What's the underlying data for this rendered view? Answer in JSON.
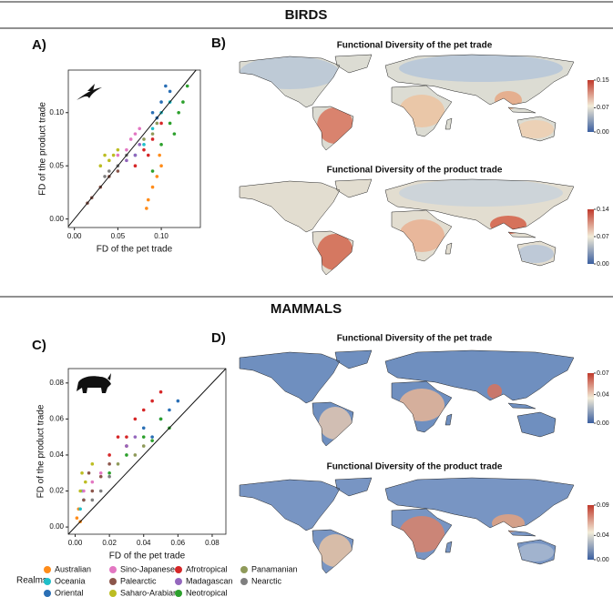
{
  "sections": [
    "BIRDS",
    "MAMMALS"
  ],
  "panels": [
    "A)",
    "B)",
    "C)",
    "D)"
  ],
  "chart_data": [
    {
      "type": "scatter",
      "xlabel": "FD of the pet trade",
      "ylabel": "FD of the product trade",
      "xlim": [
        -0.007,
        0.145
      ],
      "ylim": [
        -0.008,
        0.14
      ],
      "xticks": [
        {
          "value": 0,
          "label": "0.00"
        },
        0.05,
        {
          "value": 0.1,
          "label": "0.10"
        }
      ],
      "yticks": [
        {
          "value": 0,
          "label": "0.00"
        },
        0.05,
        {
          "value": 0.1,
          "label": "0.10"
        }
      ],
      "series": [
        {
          "color": "#ff8c1a",
          "x": [
            0.085,
            0.09,
            0.095,
            0.1,
            0.083,
            0.098
          ],
          "values": [
            0.018,
            0.03,
            0.04,
            0.05,
            0.01,
            0.06
          ]
        },
        {
          "color": "#1fbfc9",
          "x": [
            0.07,
            0.08,
            0.09,
            0.1,
            0.11
          ],
          "values": [
            0.06,
            0.07,
            0.085,
            0.1,
            0.11
          ]
        },
        {
          "color": "#2a6fb5",
          "x": [
            0.09,
            0.1,
            0.11,
            0.105,
            0.095
          ],
          "values": [
            0.1,
            0.11,
            0.12,
            0.125,
            0.095
          ]
        },
        {
          "color": "#e377c2",
          "x": [
            0.05,
            0.06,
            0.065,
            0.07,
            0.075
          ],
          "values": [
            0.06,
            0.065,
            0.075,
            0.08,
            0.085
          ]
        },
        {
          "color": "#8c564b",
          "x": [
            0.02,
            0.03,
            0.04,
            0.05,
            0.015
          ],
          "values": [
            0.02,
            0.03,
            0.04,
            0.045,
            0.015
          ]
        },
        {
          "color": "#bcbd22",
          "x": [
            0.03,
            0.04,
            0.05,
            0.035,
            0.045
          ],
          "values": [
            0.05,
            0.055,
            0.065,
            0.06,
            0.06
          ]
        },
        {
          "color": "#d62728",
          "x": [
            0.07,
            0.08,
            0.09,
            0.1,
            0.085
          ],
          "values": [
            0.05,
            0.065,
            0.075,
            0.09,
            0.06
          ]
        },
        {
          "color": "#9467bd",
          "x": [
            0.06,
            0.07,
            0.075
          ],
          "values": [
            0.055,
            0.06,
            0.07
          ]
        },
        {
          "color": "#2ca02c",
          "x": [
            0.09,
            0.1,
            0.11,
            0.12,
            0.125,
            0.13,
            0.115
          ],
          "values": [
            0.045,
            0.07,
            0.09,
            0.1,
            0.11,
            0.125,
            0.08
          ]
        },
        {
          "color": "#8f9a5a",
          "x": [
            0.08,
            0.09,
            0.095
          ],
          "values": [
            0.075,
            0.08,
            0.09
          ]
        },
        {
          "color": "#7f7f7f",
          "x": [
            0.04,
            0.05,
            0.06,
            0.035
          ],
          "values": [
            0.045,
            0.05,
            0.06,
            0.04
          ]
        }
      ]
    },
    {
      "type": "map",
      "title": "Functional Diversity of the pet trade",
      "colors": [
        "#3b5fa0",
        "#f2ecd8",
        "#c0392b"
      ],
      "ylim": [
        0,
        0.15
      ],
      "yticks": [
        {
          "value": 0,
          "label": "0.00"
        },
        0.07,
        0.15
      ]
    },
    {
      "type": "map",
      "title": "Functional Diversity of the product trade",
      "colors": [
        "#3b5fa0",
        "#f2ecd8",
        "#c0392b"
      ],
      "ylim": [
        0,
        0.14
      ],
      "yticks": [
        {
          "value": 0,
          "label": "0.00"
        },
        0.07,
        0.14
      ]
    },
    {
      "type": "scatter",
      "xlabel": "FD of the pet trade",
      "ylabel": "FD of the product trade",
      "legend_title": "Realms",
      "xlim": [
        -0.004,
        0.088
      ],
      "ylim": [
        -0.004,
        0.088
      ],
      "xticks": [
        {
          "value": 0,
          "label": "0.00"
        },
        0.02,
        0.04,
        0.06,
        0.08
      ],
      "yticks": [
        {
          "value": 0,
          "label": "0.00"
        },
        0.02,
        0.04,
        0.06,
        0.08
      ],
      "series": [
        {
          "name": "Australian",
          "color": "#ff8c1a",
          "x": [
            0.001,
            0.002,
            0.003
          ],
          "values": [
            0.005,
            0.01,
            0.003
          ]
        },
        {
          "name": "Oceania",
          "color": "#1fbfc9",
          "x": [
            0.003,
            0.005,
            0.004
          ],
          "values": [
            0.01,
            0.015,
            0.02
          ]
        },
        {
          "name": "Oriental",
          "color": "#2a6fb5",
          "x": [
            0.04,
            0.05,
            0.055,
            0.06,
            0.045
          ],
          "values": [
            0.055,
            0.06,
            0.065,
            0.07,
            0.05
          ]
        },
        {
          "name": "Sino-Japanese",
          "color": "#e377c2",
          "x": [
            0.005,
            0.01,
            0.015
          ],
          "values": [
            0.02,
            0.025,
            0.03
          ]
        },
        {
          "name": "Palearctic",
          "color": "#8c564b",
          "x": [
            0.005,
            0.01,
            0.015,
            0.02,
            0.008
          ],
          "values": [
            0.015,
            0.02,
            0.028,
            0.035,
            0.03
          ]
        },
        {
          "name": "Saharo-Arabian",
          "color": "#bcbd22",
          "x": [
            0.003,
            0.006,
            0.01,
            0.004
          ],
          "values": [
            0.02,
            0.025,
            0.035,
            0.03
          ]
        },
        {
          "name": "Afrotropical",
          "color": "#d62728",
          "x": [
            0.02,
            0.03,
            0.035,
            0.04,
            0.045,
            0.05,
            0.03,
            0.025
          ],
          "values": [
            0.04,
            0.05,
            0.06,
            0.065,
            0.07,
            0.075,
            0.045,
            0.05
          ]
        },
        {
          "name": "Madagascan",
          "color": "#9467bd",
          "x": [
            0.03,
            0.035
          ],
          "values": [
            0.045,
            0.05
          ]
        },
        {
          "name": "Neotropical",
          "color": "#2ca02c",
          "x": [
            0.02,
            0.03,
            0.04,
            0.05,
            0.055,
            0.045
          ],
          "values": [
            0.03,
            0.04,
            0.05,
            0.06,
            0.055,
            0.048
          ]
        },
        {
          "name": "Panamanian",
          "color": "#8f9a5a",
          "x": [
            0.025,
            0.035,
            0.04
          ],
          "values": [
            0.035,
            0.04,
            0.045
          ]
        },
        {
          "name": "Nearctic",
          "color": "#7f7f7f",
          "x": [
            0.01,
            0.02,
            0.015
          ],
          "values": [
            0.015,
            0.028,
            0.02
          ]
        }
      ]
    },
    {
      "type": "map",
      "title": "Functional Diversity of the pet trade",
      "colors": [
        "#3b5fa0",
        "#f2ecd8",
        "#c0392b"
      ],
      "ylim": [
        0,
        0.07
      ],
      "yticks": [
        {
          "value": 0,
          "label": "0.00"
        },
        0.04,
        0.07
      ]
    },
    {
      "type": "map",
      "title": "Functional Diversity of the product trade",
      "colors": [
        "#3b5fa0",
        "#f2ecd8",
        "#c0392b"
      ],
      "ylim": [
        0,
        0.09
      ],
      "yticks": [
        {
          "value": 0,
          "label": "0.00"
        },
        0.04,
        0.09
      ]
    }
  ]
}
